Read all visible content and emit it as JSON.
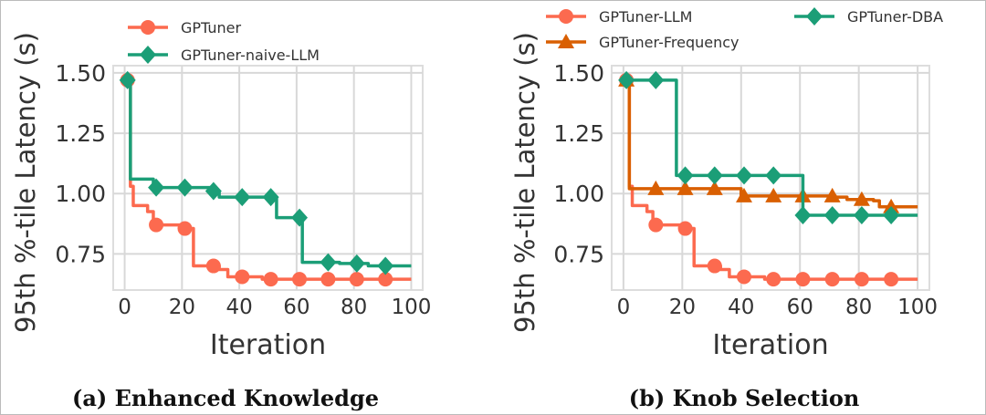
{
  "chart_data": [
    {
      "type": "line",
      "caption": "(a) Enhanced Knowledge",
      "xlabel": "Iteration",
      "ylabel": "95th %-tile Latency (s)",
      "xlim": [
        -4,
        104
      ],
      "ylim": [
        0.6,
        1.53
      ],
      "xticks": [
        0,
        20,
        40,
        60,
        80,
        100
      ],
      "yticks": [
        0.75,
        1.0,
        1.25,
        1.5
      ],
      "ytick_labels": [
        "0.75",
        "1.00",
        "1.25",
        "1.50"
      ],
      "grid": true,
      "legend_placement": "top",
      "step": "post",
      "series": [
        {
          "name": "GPTuner",
          "color": "#fc6a4f",
          "marker": "circle",
          "x": [
            1,
            2,
            3,
            8,
            10,
            21,
            24,
            33,
            36,
            48,
            100
          ],
          "y": [
            1.47,
            1.03,
            0.95,
            0.925,
            0.87,
            0.855,
            0.7,
            0.685,
            0.655,
            0.645,
            0.645
          ],
          "marker_x": [
            1,
            11,
            21,
            31,
            41,
            51,
            61,
            71,
            81,
            91
          ]
        },
        {
          "name": "GPTuner-naive-LLM",
          "color": "#1b9e77",
          "marker": "diamond",
          "x": [
            1,
            2,
            10,
            31,
            33,
            53,
            61,
            62,
            75,
            85,
            100
          ],
          "y": [
            1.47,
            1.06,
            1.025,
            1.01,
            0.985,
            0.9,
            0.9,
            0.715,
            0.71,
            0.7,
            0.7
          ],
          "marker_x": [
            1,
            11,
            21,
            31,
            41,
            51,
            61,
            71,
            81,
            91
          ]
        }
      ]
    },
    {
      "type": "line",
      "caption": "(b) Knob Selection",
      "xlabel": "Iteration",
      "ylabel": "95th %-tile Latency (s)",
      "xlim": [
        -4,
        104
      ],
      "ylim": [
        0.6,
        1.53
      ],
      "xticks": [
        0,
        20,
        40,
        60,
        80,
        100
      ],
      "yticks": [
        0.75,
        1.0,
        1.25,
        1.5
      ],
      "ytick_labels": [
        "0.75",
        "1.00",
        "1.25",
        "1.50"
      ],
      "grid": true,
      "legend_placement": "top",
      "step": "post",
      "series": [
        {
          "name": "GPTuner-LLM",
          "color": "#fc6a4f",
          "marker": "circle",
          "x": [
            1,
            2,
            3,
            8,
            10,
            21,
            24,
            33,
            36,
            48,
            100
          ],
          "y": [
            1.47,
            1.03,
            0.95,
            0.925,
            0.87,
            0.855,
            0.7,
            0.685,
            0.655,
            0.645,
            0.645
          ],
          "marker_x": [
            1,
            11,
            21,
            31,
            41,
            51,
            61,
            71,
            81,
            91
          ]
        },
        {
          "name": "GPTuner-Frequency",
          "color": "#d95f02",
          "marker": "triangle",
          "x": [
            1,
            2,
            40,
            72,
            76,
            85,
            87,
            100
          ],
          "y": [
            1.47,
            1.02,
            0.99,
            0.985,
            0.975,
            0.97,
            0.945,
            0.945
          ],
          "marker_x": [
            1,
            11,
            21,
            31,
            41,
            51,
            61,
            71,
            81,
            91
          ]
        },
        {
          "name": "GPTuner-DBA",
          "color": "#1b9e77",
          "marker": "diamond",
          "x": [
            1,
            18,
            60,
            61,
            100
          ],
          "y": [
            1.47,
            1.075,
            1.075,
            0.91,
            0.91
          ],
          "marker_x": [
            1,
            11,
            21,
            31,
            41,
            51,
            61,
            71,
            81,
            91
          ]
        }
      ]
    }
  ]
}
